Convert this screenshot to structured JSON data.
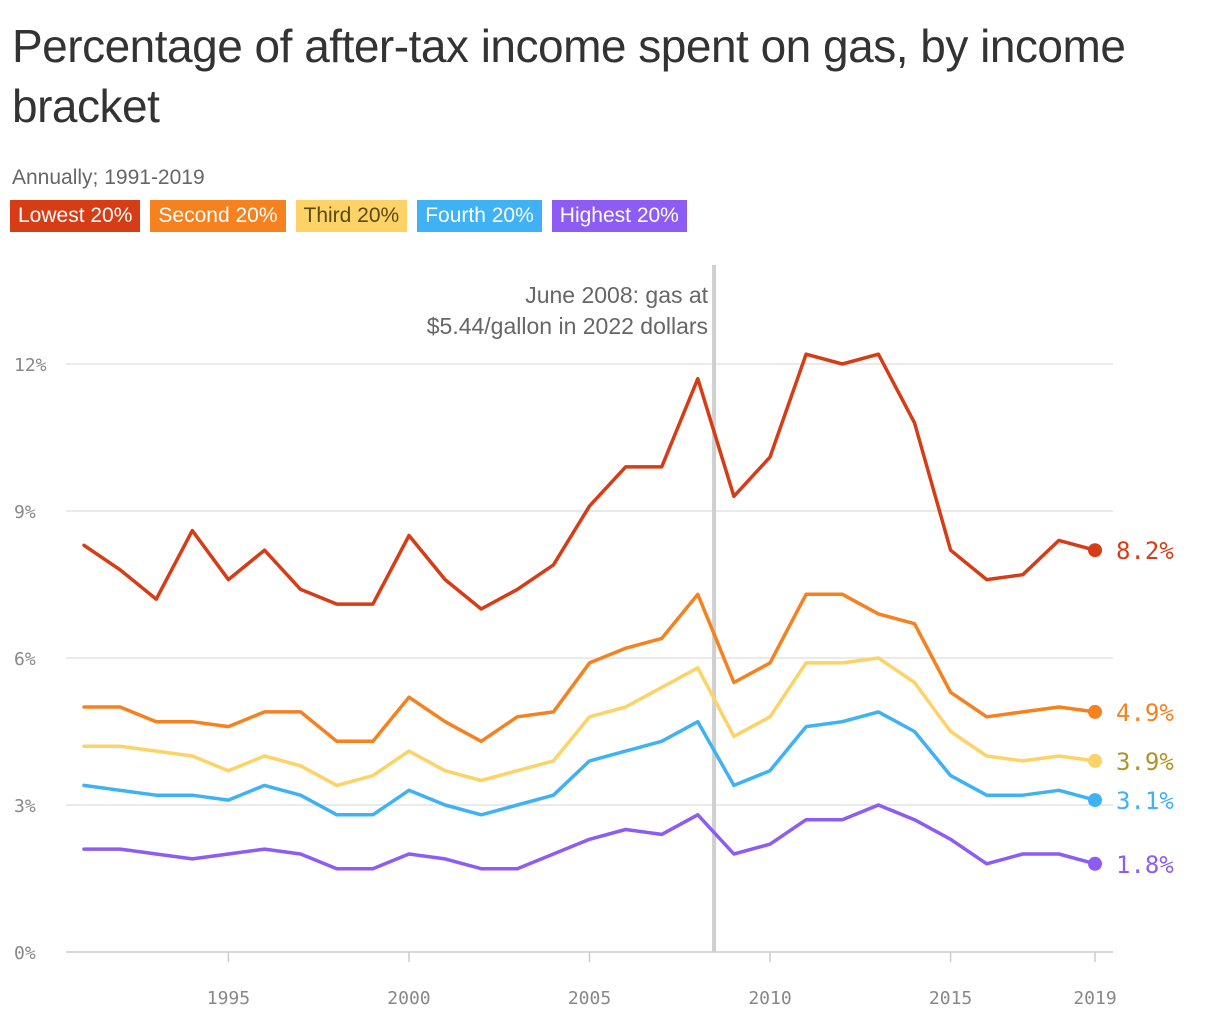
{
  "title": "Percentage of after-tax income spent on gas, by income bracket",
  "subtitle": "Annually; 1991-2019",
  "annotation": {
    "line1": "June 2008: gas at",
    "line2": "$5.44/gallon in 2022 dollars",
    "x": 2008.45
  },
  "chart_data": {
    "type": "line",
    "x": [
      1991,
      1992,
      1993,
      1994,
      1995,
      1996,
      1997,
      1998,
      1999,
      2000,
      2001,
      2002,
      2003,
      2004,
      2005,
      2006,
      2007,
      2008,
      2009,
      2010,
      2011,
      2012,
      2013,
      2014,
      2015,
      2016,
      2017,
      2018,
      2019
    ],
    "xticks": [
      "1995",
      "2000",
      "2005",
      "2010",
      "2015",
      "2019"
    ],
    "yticks": [
      "0%",
      "3%",
      "6%",
      "9%",
      "12%"
    ],
    "ylim": [
      0,
      13.2
    ],
    "grid": true,
    "series": [
      {
        "name": "Lowest 20%",
        "color": "#d63c16",
        "text_color": "#ffffff",
        "end_label": "8.2%",
        "values": [
          8.3,
          7.8,
          7.2,
          8.6,
          7.6,
          8.2,
          7.4,
          7.1,
          7.1,
          8.5,
          7.6,
          7.0,
          7.4,
          7.9,
          9.1,
          9.9,
          9.9,
          11.7,
          9.3,
          10.1,
          12.2,
          12.0,
          12.2,
          10.8,
          8.2,
          7.6,
          7.7,
          8.4,
          8.2
        ]
      },
      {
        "name": "Second 20%",
        "color": "#f5811f",
        "text_color": "#ffffff",
        "end_label": "4.9%",
        "values": [
          5.0,
          5.0,
          4.7,
          4.7,
          4.6,
          4.9,
          4.9,
          4.3,
          4.3,
          5.2,
          4.7,
          4.3,
          4.8,
          4.9,
          5.9,
          6.2,
          6.4,
          7.3,
          5.5,
          5.9,
          7.3,
          7.3,
          6.9,
          6.7,
          5.3,
          4.8,
          4.9,
          5.0,
          4.9
        ]
      },
      {
        "name": "Third 20%",
        "color": "#fdd367",
        "text_color": "#5a4a10",
        "end_label": "3.9%",
        "label_color": "#b3922b",
        "values": [
          4.2,
          4.2,
          4.1,
          4.0,
          3.7,
          4.0,
          3.8,
          3.4,
          3.6,
          4.1,
          3.7,
          3.5,
          3.7,
          3.9,
          4.8,
          5.0,
          5.4,
          5.8,
          4.4,
          4.8,
          5.9,
          5.9,
          6.0,
          5.5,
          4.5,
          4.0,
          3.9,
          4.0,
          3.9
        ]
      },
      {
        "name": "Fourth 20%",
        "color": "#3fb1f5",
        "text_color": "#ffffff",
        "end_label": "3.1%",
        "values": [
          3.4,
          3.3,
          3.2,
          3.2,
          3.1,
          3.4,
          3.2,
          2.8,
          2.8,
          3.3,
          3.0,
          2.8,
          3.0,
          3.2,
          3.9,
          4.1,
          4.3,
          4.7,
          3.4,
          3.7,
          4.6,
          4.7,
          4.9,
          4.5,
          3.6,
          3.2,
          3.2,
          3.3,
          3.1
        ]
      },
      {
        "name": "Highest 20%",
        "color": "#8c5cf5",
        "text_color": "#ffffff",
        "end_label": "1.8%",
        "values": [
          2.1,
          2.1,
          2.0,
          1.9,
          2.0,
          2.1,
          2.0,
          1.7,
          1.7,
          2.0,
          1.9,
          1.7,
          1.7,
          2.0,
          2.3,
          2.5,
          2.4,
          2.8,
          2.0,
          2.2,
          2.7,
          2.7,
          3.0,
          2.7,
          2.3,
          1.8,
          2.0,
          2.0,
          1.8
        ]
      }
    ]
  }
}
